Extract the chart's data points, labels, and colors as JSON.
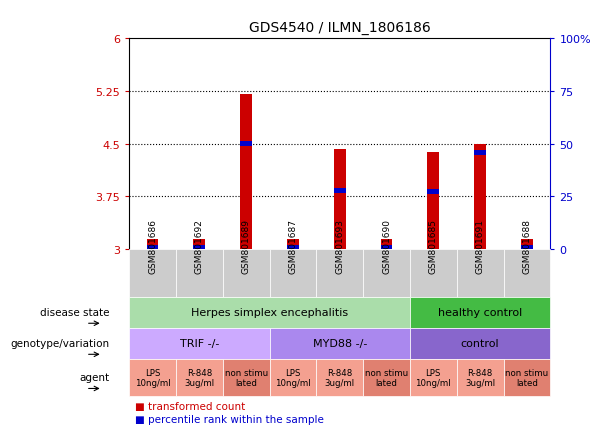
{
  "title": "GDS4540 / ILMN_1806186",
  "samples": [
    "GSM801686",
    "GSM801692",
    "GSM801689",
    "GSM801687",
    "GSM801693",
    "GSM801690",
    "GSM801685",
    "GSM801691",
    "GSM801688"
  ],
  "red_values": [
    3.15,
    3.15,
    5.2,
    3.15,
    4.42,
    3.15,
    4.38,
    4.5,
    3.15
  ],
  "blue_values": [
    3.02,
    3.02,
    4.5,
    3.02,
    3.83,
    3.02,
    3.82,
    4.38,
    3.02
  ],
  "ylim": [
    3.0,
    6.0
  ],
  "yticks_left": [
    3,
    3.75,
    4.5,
    5.25,
    6
  ],
  "yticks_right": [
    0,
    25,
    50,
    75,
    100
  ],
  "bar_color_red": "#cc0000",
  "bar_color_blue": "#0000cc",
  "bar_width": 0.25,
  "disease_state_labels": [
    "Herpes simplex encephalitis",
    "healthy control"
  ],
  "disease_state_cols": [
    6,
    3
  ],
  "disease_state_colors": [
    "#aaddaa",
    "#44bb44"
  ],
  "genotype_labels": [
    "TRIF -/-",
    "MYD88 -/-",
    "control"
  ],
  "genotype_cols": [
    3,
    3,
    3
  ],
  "genotype_colors": [
    "#ccaaff",
    "#aa88ee",
    "#8866cc"
  ],
  "agent_labels": [
    "LPS\n10ng/ml",
    "R-848\n3ug/ml",
    "non stimu\nlated",
    "LPS\n10ng/ml",
    "R-848\n3ug/ml",
    "non stimu\nlated",
    "LPS\n10ng/ml",
    "R-848\n3ug/ml",
    "non stimu\nlated"
  ],
  "agent_colors": [
    "#f4a090",
    "#f4a090",
    "#e08070",
    "#f4a090",
    "#f4a090",
    "#e08070",
    "#f4a090",
    "#f4a090",
    "#e08070"
  ],
  "sample_bg_color": "#cccccc",
  "legend_red_label": "transformed count",
  "legend_blue_label": "percentile rank within the sample"
}
